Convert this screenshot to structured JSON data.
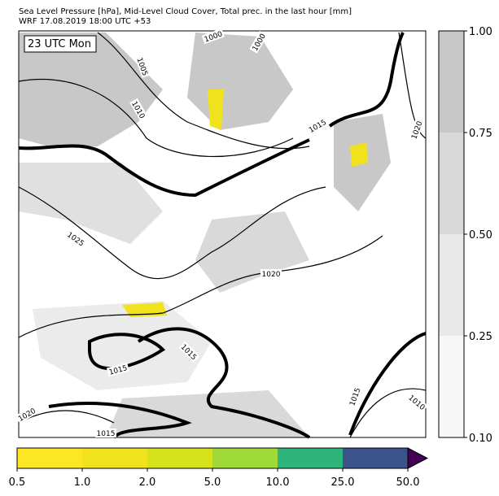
{
  "header": {
    "title": "Sea Level Pressure [hPa], Mid-Level Cloud Cover, Total prec. in the last hour [mm]",
    "subtitle": "WRF 17.08.2019 18:00 UTC +53"
  },
  "map": {
    "time_label": "23 UTC Mon",
    "contour_labels": [
      1000,
      1000,
      1005,
      1010,
      1015,
      1020,
      1025,
      1020,
      1015,
      1015,
      1020,
      1015,
      1015,
      1010
    ]
  },
  "cloud_colorbar": {
    "levels": [
      {
        "value": 0.1,
        "label": "0.10"
      },
      {
        "value": 0.25,
        "label": "0.25"
      },
      {
        "value": 0.5,
        "label": "0.50"
      },
      {
        "value": 0.75,
        "label": "0.75"
      },
      {
        "value": 1,
        "label": "1.00"
      }
    ],
    "colors": [
      "#f7f7f7",
      "#e9e9e9",
      "#d9d9d9",
      "#c8c8c8"
    ]
  },
  "precip_colorbar": {
    "levels": [
      0.5,
      {
        "value": 1,
        "label": "1.0"
      },
      {
        "value": 2,
        "label": "2.0"
      },
      {
        "value": 5,
        "label": "5.0"
      },
      {
        "value": 10,
        "label": "10.0"
      },
      {
        "value": 25,
        "label": "25.0"
      },
      {
        "value": 50,
        "label": "50.0"
      }
    ],
    "colors": [
      "#fde725",
      "#f0e21d",
      "#d6e21a",
      "#a0da39",
      "#2fb47c",
      "#3b528b",
      "#440154"
    ]
  }
}
